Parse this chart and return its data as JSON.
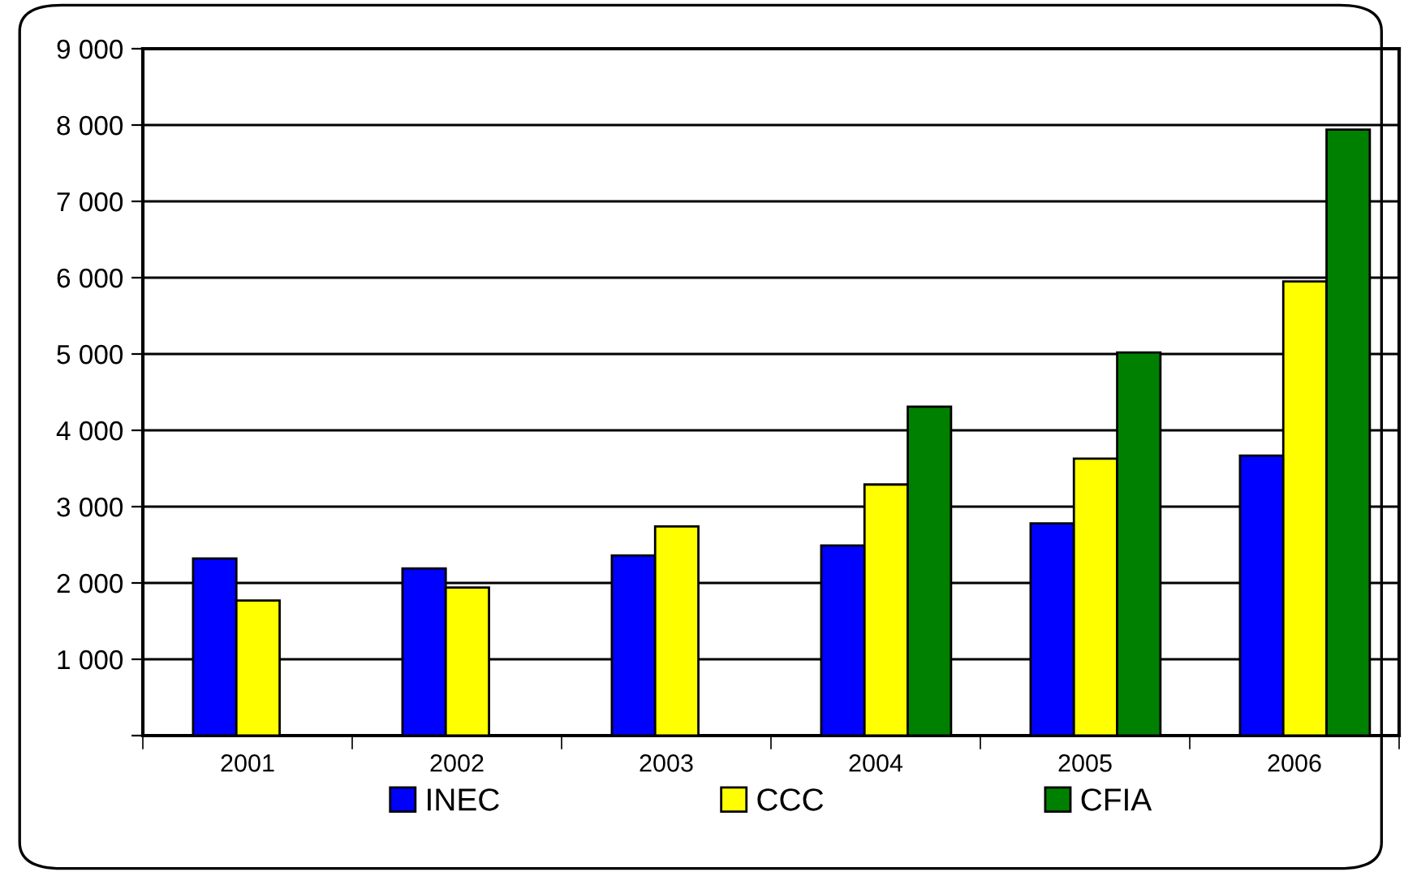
{
  "chart_data": {
    "type": "bar",
    "categories": [
      "2001",
      "2002",
      "2003",
      "2004",
      "2005",
      "2006"
    ],
    "series": [
      {
        "name": "INEC",
        "color": "#0000ff",
        "values": [
          2320,
          2190,
          2360,
          2490,
          2780,
          3670
        ]
      },
      {
        "name": "CCC",
        "color": "#ffff00",
        "values": [
          1770,
          1940,
          2740,
          3290,
          3630,
          5950
        ]
      },
      {
        "name": "CFIA",
        "color": "#008000",
        "values": [
          null,
          null,
          null,
          4310,
          5020,
          7940
        ]
      }
    ],
    "ylim": [
      0,
      9000
    ],
    "yticks": [
      {
        "value": 0,
        "label": null
      },
      {
        "value": 1000,
        "label": "1 000"
      },
      {
        "value": 2000,
        "label": "2 000"
      },
      {
        "value": 3000,
        "label": "3 000"
      },
      {
        "value": 4000,
        "label": "4 000"
      },
      {
        "value": 5000,
        "label": "5 000"
      },
      {
        "value": 6000,
        "label": "6 000"
      },
      {
        "value": 7000,
        "label": "7 000"
      },
      {
        "value": 8000,
        "label": "8 000"
      },
      {
        "value": 9000,
        "label": "9 000"
      }
    ],
    "grid": "y",
    "legend": "bottom"
  }
}
